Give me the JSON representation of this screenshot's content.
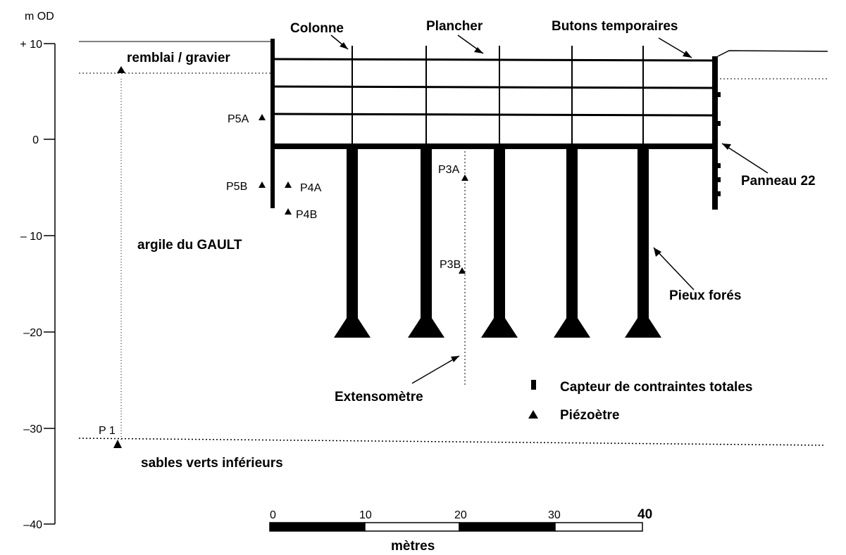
{
  "axis": {
    "unit": "m OD",
    "ticks": [
      "+ 10",
      "0",
      "– 10",
      "–20",
      "–30",
      "–40"
    ]
  },
  "labels": {
    "colonne": "Colonne",
    "plancher": "Plancher",
    "butons": "Butons temporaires",
    "remblai": "remblai / gravier",
    "p5a": "P5A",
    "p5b": "P5B",
    "p4a": "P4A",
    "p4b": "P4B",
    "p3a": "P3A",
    "p3b": "P3B",
    "p1": "P 1",
    "panneau": "Panneau 22",
    "gault": "argile du GAULT",
    "pieux": "Pieux forés",
    "extenso": "Extensomètre",
    "sables": "sables verts inférieurs"
  },
  "legend": [
    "Capteur de contraintes totales",
    "Piézoètre"
  ],
  "scale": {
    "ticks": [
      "0",
      "10",
      "20",
      "30",
      "40"
    ],
    "unit": "mètres"
  }
}
